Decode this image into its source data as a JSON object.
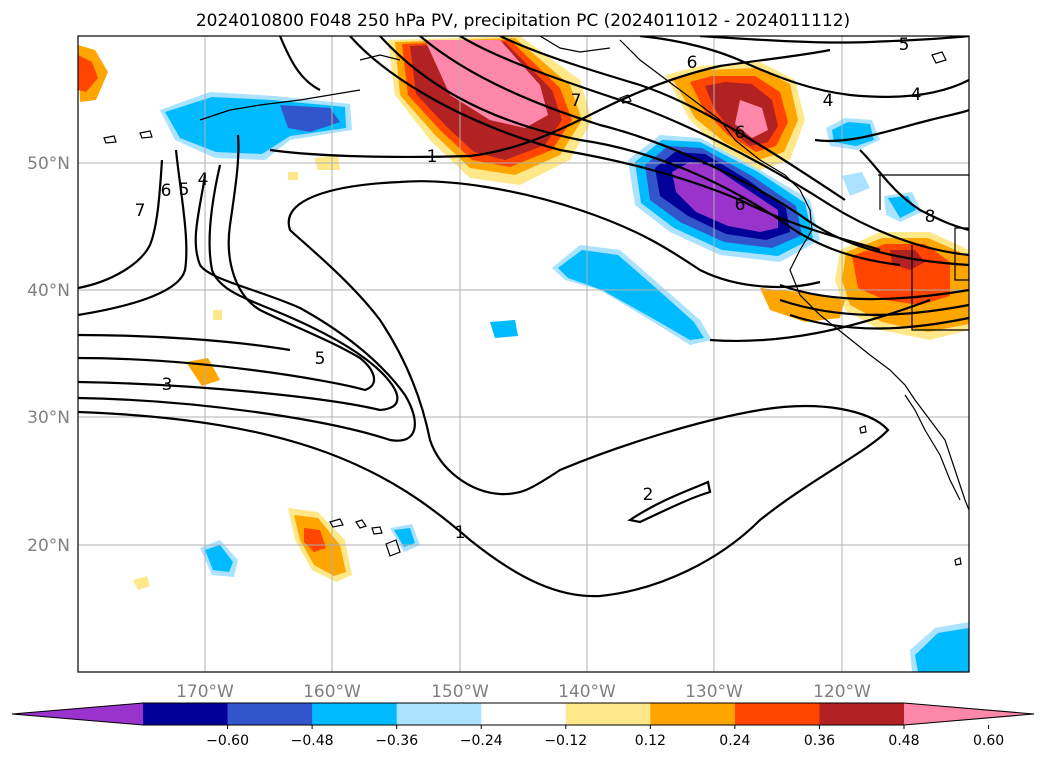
{
  "title": "2024010800 F048 250 hPa PV, precipitation PC (2024011012 - 2024011112)",
  "axes": {
    "lon_labels": [
      "170°W",
      "160°W",
      "150°W",
      "140°W",
      "130°W",
      "120°W"
    ],
    "lat_labels": [
      "50°N",
      "40°N",
      "30°N",
      "20°N"
    ]
  },
  "colorbar": {
    "extend": "both",
    "colors": [
      "#9933cc",
      "#000099",
      "#3355cc",
      "#00bbff",
      "#aae2ff",
      "#ffffff",
      "#ffe88a",
      "#ffa500",
      "#ff4500",
      "#b22222",
      "#ff88aa"
    ],
    "tick_labels": [
      "−0.60",
      "−0.48",
      "−0.36",
      "−0.24",
      "−0.12",
      "0.12",
      "0.24",
      "0.36",
      "0.48",
      "0.60"
    ]
  },
  "pv_contour_labels": [
    "1",
    "1",
    "2",
    "3",
    "4",
    "4",
    "5",
    "5",
    "5",
    "6",
    "6",
    "6",
    "7",
    "7",
    "8",
    "4",
    "6"
  ]
}
